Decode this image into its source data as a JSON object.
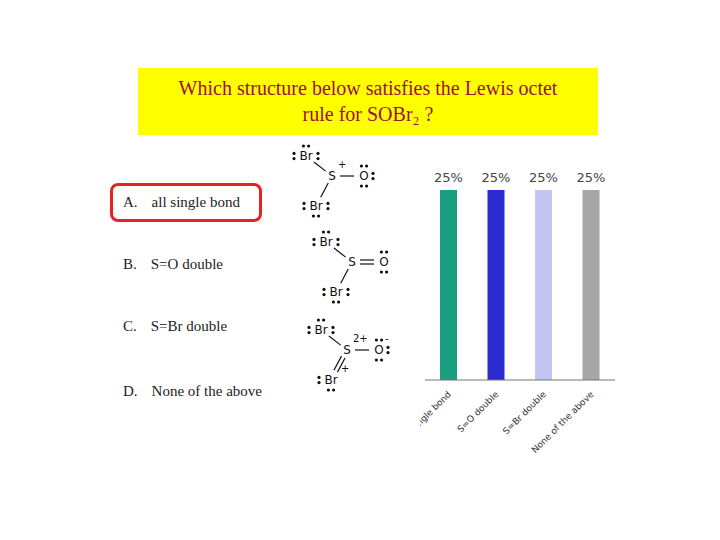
{
  "title": "Which structure below satisfies the Lewis octet rule for SOBr₂ ?",
  "options": [
    {
      "letter": "A.",
      "text": "all single bond"
    },
    {
      "letter": "B.",
      "text": "S=O  double"
    },
    {
      "letter": "C.",
      "text": "S=Br double"
    },
    {
      "letter": "D.",
      "text": "None of the above"
    }
  ],
  "answer": "A.",
  "structures": [
    {
      "top": "Br",
      "center": "S",
      "right": "O",
      "bottom": "Br",
      "bonds": {
        "top": "single",
        "right": "single",
        "bottom": "single"
      },
      "charges": {
        "center": "+"
      }
    },
    {
      "top": "Br",
      "center": "S",
      "right": "O",
      "bottom": "Br",
      "bonds": {
        "top": "single",
        "right": "double",
        "bottom": "single"
      },
      "charges": {}
    },
    {
      "top": "Br",
      "center": "S",
      "right": "O",
      "bottom": "Br",
      "bonds": {
        "top": "single",
        "right": "single",
        "bottom": "double"
      },
      "charges": {
        "center": "2+",
        "right": "-",
        "bottom": "+"
      }
    }
  ],
  "chart_data": {
    "type": "bar",
    "categories": [
      "all single bond",
      "S=O double",
      "S=Br double",
      "None of the above"
    ],
    "values": [
      25,
      25,
      25,
      25
    ],
    "value_labels": [
      "25%",
      "25%",
      "25%",
      "25%"
    ],
    "colors": [
      "#1a9e80",
      "#2b2bd1",
      "#c5c5f2",
      "#a6a6a6"
    ],
    "ylim": [
      0,
      25
    ],
    "data_labels": true,
    "tick_labels": "x"
  }
}
